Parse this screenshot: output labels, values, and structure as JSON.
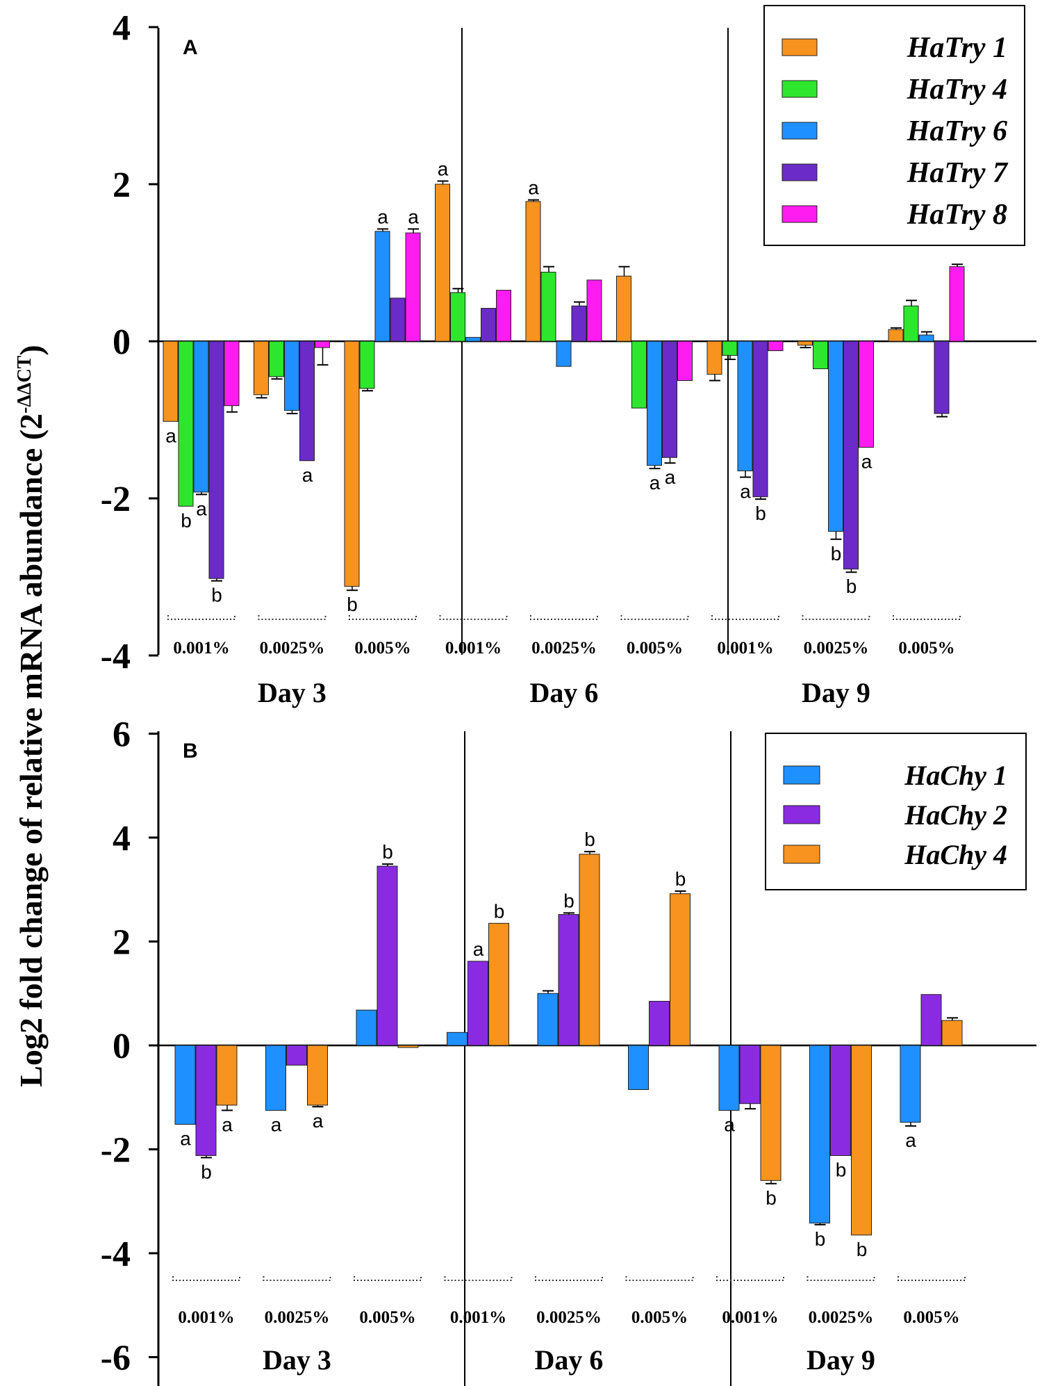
{
  "y_axis_label_main": "Log2 fold change of relative mRNA abundance (2",
  "y_axis_label_sup": "-ΔΔCT",
  "y_axis_label_close": ")",
  "chart_data": [
    {
      "panel": "A",
      "type": "bar",
      "ylim": [
        -4,
        4
      ],
      "yticks": [
        -4,
        -2,
        0,
        2,
        4
      ],
      "days": [
        "Day 3",
        "Day 6",
        "Day 9"
      ],
      "concentrations": [
        "0.001%",
        "0.0025%",
        "0.005%"
      ],
      "legend_position": "top-right",
      "series": [
        {
          "name": "HaTry  1",
          "color": "#F7931E",
          "values": [
            -1.02,
            -0.68,
            -3.12,
            2.0,
            1.78,
            0.83,
            -0.42,
            -0.05,
            0.15
          ]
        },
        {
          "name": "HaTry  4",
          "color": "#2EE62E",
          "values": [
            -2.1,
            -0.45,
            -0.6,
            0.62,
            0.88,
            -0.85,
            -0.18,
            -0.35,
            0.45
          ]
        },
        {
          "name": "HaTry  6",
          "color": "#1E90FF",
          "values": [
            -1.92,
            -0.88,
            1.4,
            0.05,
            -0.32,
            -1.58,
            -1.65,
            -2.42,
            0.08
          ]
        },
        {
          "name": "HaTry  7",
          "color": "#6A2BC8",
          "values": [
            -3.02,
            -1.52,
            0.55,
            0.42,
            0.45,
            -1.48,
            -1.98,
            -2.9,
            -0.92
          ]
        },
        {
          "name": "HaTry  8",
          "color": "#FF1CF0",
          "values": [
            -0.82,
            -0.08,
            1.38,
            0.65,
            0.78,
            -0.5,
            -0.12,
            -1.35,
            0.95
          ]
        }
      ],
      "errors": [
        [
          0,
          0.04,
          0.05,
          0.04,
          0.02,
          0.12,
          0.08,
          0.03,
          0.02
        ],
        [
          0,
          0.03,
          0.03,
          0.05,
          0.07,
          0,
          0.05,
          0,
          0.07
        ],
        [
          0.03,
          0.04,
          0.03,
          0,
          0,
          0.04,
          0.08,
          0.1,
          0.04
        ],
        [
          0.03,
          0,
          0,
          0,
          0.05,
          0.07,
          0.03,
          0.04,
          0.04
        ],
        [
          0.08,
          0.22,
          0.05,
          0,
          0,
          0,
          0,
          0,
          0.03
        ]
      ],
      "letters": [
        [
          "a",
          "",
          "b",
          "a",
          "a",
          "",
          "",
          "",
          ""
        ],
        [
          "b",
          "",
          "",
          "",
          "",
          "",
          "",
          "",
          ""
        ],
        [
          "a",
          "",
          "a",
          "",
          "",
          "a",
          "a",
          "b",
          ""
        ],
        [
          "b",
          "a",
          "",
          "",
          "",
          "a",
          "b",
          "b",
          ""
        ],
        [
          "",
          "",
          "a",
          "",
          "",
          "",
          "",
          "a",
          ""
        ]
      ]
    },
    {
      "panel": "B",
      "type": "bar",
      "ylim": [
        -6,
        6
      ],
      "yticks": [
        -6,
        -4,
        -2,
        0,
        2,
        4,
        6
      ],
      "days": [
        "Day 3",
        "Day 6",
        "Day 9"
      ],
      "concentrations": [
        "0.001%",
        "0.0025%",
        "0.005%"
      ],
      "legend_position": "top-right",
      "series": [
        {
          "name": "HaChy 1",
          "color": "#1E90FF",
          "values": [
            -1.52,
            -1.25,
            0.68,
            0.25,
            1.0,
            -0.85,
            -1.25,
            -3.42,
            -1.48
          ]
        },
        {
          "name": "HaChy 2",
          "color": "#8A2BE2",
          "values": [
            -2.12,
            -0.38,
            3.45,
            1.62,
            2.52,
            0.85,
            -1.12,
            -2.12,
            0.98
          ]
        },
        {
          "name": "HaChy 4",
          "color": "#F7931E",
          "values": [
            -1.15,
            -1.15,
            -0.04,
            2.35,
            3.68,
            2.92,
            -2.6,
            -3.65,
            0.48
          ]
        }
      ],
      "errors": [
        [
          0,
          0,
          0,
          0,
          0.05,
          0,
          0,
          0.03,
          0.07
        ],
        [
          0.04,
          0,
          0.04,
          0,
          0.03,
          0,
          0.1,
          0,
          0
        ],
        [
          0.1,
          0.03,
          0,
          0,
          0.05,
          0.05,
          0.06,
          0,
          0.05
        ]
      ],
      "letters": [
        [
          "a",
          "a",
          "",
          "",
          "",
          "",
          "a",
          "b",
          "a"
        ],
        [
          "b",
          "",
          "b",
          "a",
          "b",
          "",
          "",
          "b",
          ""
        ],
        [
          "a",
          "a",
          "",
          "b",
          "b",
          "b",
          "b",
          "b",
          ""
        ]
      ]
    }
  ]
}
